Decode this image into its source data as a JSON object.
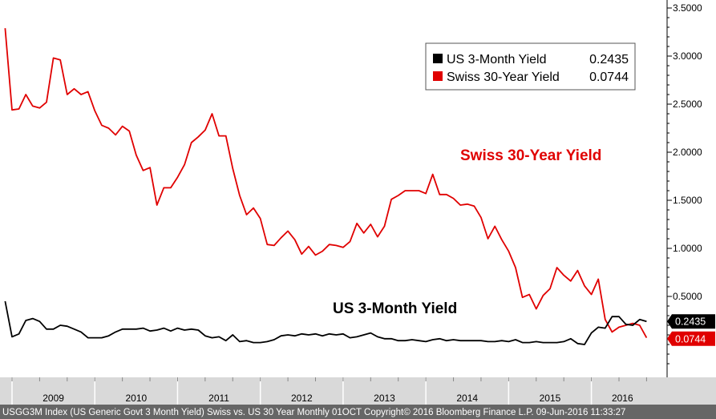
{
  "chart_data": {
    "type": "line",
    "title": "",
    "xlabel": "",
    "ylabel": "",
    "ylim": [
      -0.25,
      3.55
    ],
    "y_ticks": [
      0.5,
      1.0,
      1.5,
      2.0,
      2.5,
      3.0,
      3.5
    ],
    "y_tick_labels": [
      "0.5000",
      "1.0000",
      "1.5000",
      "2.0000",
      "2.5000",
      "3.0000",
      "3.5000"
    ],
    "x_years": [
      "2009",
      "2010",
      "2011",
      "2012",
      "2013",
      "2014",
      "2015",
      "2016"
    ],
    "x_start": 2009.0,
    "x_end": 2016.75,
    "series": [
      {
        "name": "Swiss 30-Year Yield",
        "color": "#e00000",
        "last_value": "0.0744",
        "x_start": 2008.917,
        "x_step": 0.08333,
        "values": [
          3.29,
          2.44,
          2.45,
          2.6,
          2.48,
          2.46,
          2.52,
          2.98,
          2.96,
          2.6,
          2.66,
          2.6,
          2.63,
          2.43,
          2.28,
          2.25,
          2.18,
          2.27,
          2.22,
          1.97,
          1.81,
          1.84,
          1.45,
          1.63,
          1.63,
          1.74,
          1.87,
          2.1,
          2.16,
          2.23,
          2.4,
          2.17,
          2.17,
          1.83,
          1.55,
          1.35,
          1.42,
          1.31,
          1.04,
          1.03,
          1.11,
          1.18,
          1.09,
          0.94,
          1.02,
          0.93,
          0.97,
          1.04,
          1.03,
          1.01,
          1.07,
          1.26,
          1.16,
          1.25,
          1.12,
          1.23,
          1.51,
          1.55,
          1.6,
          1.6,
          1.6,
          1.57,
          1.77,
          1.56,
          1.56,
          1.52,
          1.45,
          1.46,
          1.44,
          1.32,
          1.1,
          1.23,
          1.09,
          0.97,
          0.8,
          0.49,
          0.52,
          0.37,
          0.51,
          0.58,
          0.8,
          0.72,
          0.66,
          0.77,
          0.61,
          0.52,
          0.68,
          0.26,
          0.13,
          0.18,
          0.2,
          0.22,
          0.2,
          0.07
        ]
      },
      {
        "name": "US 3-Month Yield",
        "color": "#000000",
        "last_value": "0.2435",
        "x_start": 2008.917,
        "x_step": 0.08333,
        "values": [
          0.45,
          0.08,
          0.11,
          0.25,
          0.27,
          0.24,
          0.16,
          0.16,
          0.2,
          0.19,
          0.16,
          0.13,
          0.07,
          0.07,
          0.07,
          0.09,
          0.13,
          0.16,
          0.16,
          0.16,
          0.17,
          0.14,
          0.15,
          0.17,
          0.14,
          0.17,
          0.15,
          0.16,
          0.15,
          0.09,
          0.07,
          0.08,
          0.04,
          0.1,
          0.03,
          0.04,
          0.02,
          0.02,
          0.03,
          0.05,
          0.09,
          0.1,
          0.09,
          0.11,
          0.1,
          0.11,
          0.09,
          0.11,
          0.1,
          0.11,
          0.07,
          0.08,
          0.1,
          0.12,
          0.08,
          0.06,
          0.06,
          0.04,
          0.04,
          0.05,
          0.04,
          0.03,
          0.05,
          0.06,
          0.04,
          0.05,
          0.04,
          0.04,
          0.04,
          0.04,
          0.03,
          0.03,
          0.04,
          0.03,
          0.05,
          0.02,
          0.02,
          0.03,
          0.02,
          0.02,
          0.02,
          0.03,
          0.06,
          0.01,
          0.0,
          0.12,
          0.18,
          0.17,
          0.29,
          0.29,
          0.21,
          0.2,
          0.26,
          0.24
        ]
      }
    ]
  },
  "legend": {
    "items": [
      {
        "label": "US 3-Month Yield",
        "value": "0.2435",
        "color": "#000000"
      },
      {
        "label": "Swiss 30-Year Yield",
        "value": "0.0744",
        "color": "#e00000"
      }
    ]
  },
  "annotations": {
    "swiss": {
      "text": "Swiss 30-Year Yield",
      "color": "#e00000"
    },
    "us": {
      "text": "US 3-Month Yield",
      "color": "#000000"
    }
  },
  "footer": {
    "text": "USGG3M Index (US Generic Govt 3 Month Yield) Swiss vs. US 30 Year  Monthly 01OCT Copyright© 2016 Bloomberg Finance L.P. 09-Jun-2016 11:33:27"
  }
}
